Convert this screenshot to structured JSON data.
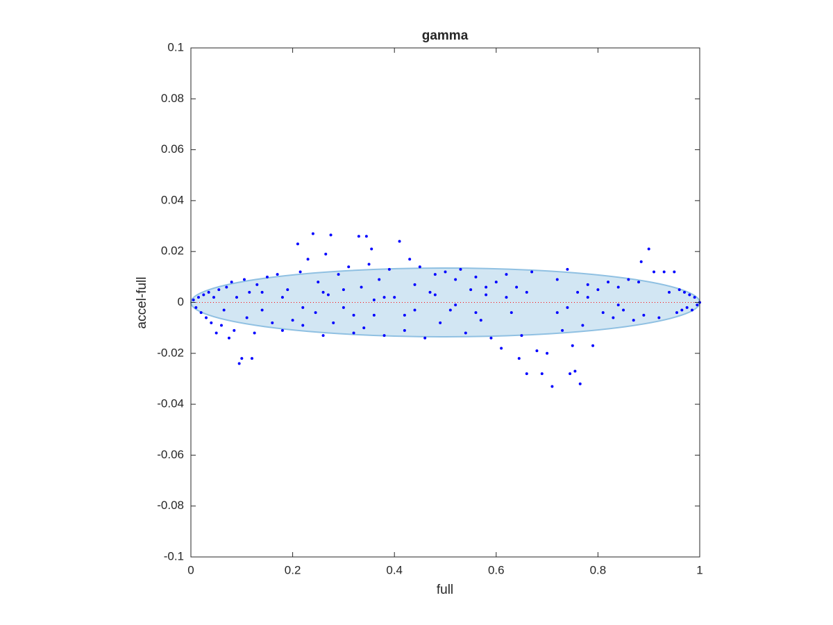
{
  "chart_data": {
    "type": "scatter",
    "title": "gamma",
    "x_label": "full",
    "y_label": "accel-full",
    "color": "#0000ff",
    "ellipse": {
      "center": [
        0.5,
        0
      ],
      "radii": [
        0.5,
        0.0135
      ],
      "color": "#d2e6f3",
      "edge_color": "#8fc0e2"
    },
    "reference_line": {
      "y": 0,
      "color": "#ff0000"
    },
    "xlim": [
      0,
      1
    ],
    "xticks": [
      0,
      0.2,
      0.4,
      0.6,
      0.8,
      1
    ],
    "ylim": [
      -0.1,
      0.1
    ],
    "yticks": [
      -0.1,
      -0.08,
      -0.06,
      -0.04,
      -0.02,
      0,
      0.02,
      0.04,
      0.06,
      0.08,
      0.1
    ],
    "grid": false,
    "x": [
      0.005,
      0.01,
      0.015,
      0.02,
      0.025,
      0.03,
      0.035,
      0.04,
      0.045,
      0.05,
      0.055,
      0.06,
      0.065,
      0.07,
      0.075,
      0.08,
      0.085,
      0.09,
      0.095,
      0.1,
      0.105,
      0.11,
      0.115,
      0.12,
      0.125,
      0.13,
      0.14,
      0.15,
      0.16,
      0.17,
      0.18,
      0.19,
      0.2,
      0.21,
      0.215,
      0.22,
      0.23,
      0.24,
      0.245,
      0.25,
      0.26,
      0.265,
      0.27,
      0.275,
      0.28,
      0.29,
      0.3,
      0.31,
      0.32,
      0.33,
      0.335,
      0.34,
      0.345,
      0.35,
      0.355,
      0.36,
      0.37,
      0.38,
      0.39,
      0.4,
      0.41,
      0.42,
      0.43,
      0.44,
      0.45,
      0.46,
      0.47,
      0.48,
      0.49,
      0.5,
      0.51,
      0.52,
      0.53,
      0.54,
      0.55,
      0.56,
      0.57,
      0.58,
      0.59,
      0.6,
      0.61,
      0.62,
      0.63,
      0.64,
      0.645,
      0.65,
      0.66,
      0.67,
      0.68,
      0.69,
      0.7,
      0.71,
      0.72,
      0.73,
      0.74,
      0.745,
      0.75,
      0.755,
      0.76,
      0.765,
      0.77,
      0.78,
      0.79,
      0.8,
      0.81,
      0.82,
      0.83,
      0.84,
      0.85,
      0.86,
      0.87,
      0.88,
      0.885,
      0.89,
      0.9,
      0.91,
      0.92,
      0.93,
      0.94,
      0.95,
      0.955,
      0.96,
      0.965,
      0.97,
      0.975,
      0.98,
      0.985,
      0.99,
      0.995,
      1.0,
      0.3,
      0.32,
      0.36,
      0.44,
      0.48,
      0.52,
      0.56,
      0.62,
      0.66,
      0.72,
      0.14,
      0.18,
      0.22,
      0.26,
      0.38,
      0.42,
      0.58,
      0.74,
      0.78,
      0.84
    ],
    "values": [
      0.001,
      -0.002,
      0.002,
      -0.004,
      0.003,
      -0.006,
      0.004,
      -0.008,
      0.002,
      -0.012,
      0.005,
      -0.009,
      -0.003,
      0.006,
      -0.014,
      0.008,
      -0.011,
      0.002,
      -0.024,
      -0.022,
      0.009,
      -0.006,
      0.004,
      -0.022,
      -0.012,
      0.007,
      -0.003,
      0.01,
      -0.008,
      0.011,
      -0.011,
      0.005,
      -0.007,
      0.023,
      0.012,
      -0.009,
      0.017,
      0.027,
      -0.004,
      0.008,
      -0.013,
      0.019,
      0.003,
      0.0265,
      -0.008,
      0.011,
      -0.002,
      0.014,
      -0.012,
      0.026,
      0.006,
      -0.01,
      0.026,
      0.015,
      0.021,
      -0.005,
      0.009,
      -0.013,
      0.013,
      0.002,
      0.024,
      -0.011,
      0.017,
      0.007,
      0.014,
      -0.014,
      0.004,
      0.011,
      -0.008,
      0.012,
      -0.003,
      0.009,
      0.013,
      -0.012,
      0.005,
      0.01,
      -0.007,
      0.003,
      -0.014,
      0.008,
      -0.018,
      0.011,
      -0.004,
      0.006,
      -0.022,
      -0.013,
      -0.028,
      0.012,
      -0.019,
      -0.028,
      -0.02,
      -0.033,
      0.009,
      -0.011,
      0.013,
      -0.028,
      -0.017,
      -0.027,
      0.004,
      -0.032,
      -0.009,
      0.007,
      -0.017,
      0.005,
      -0.004,
      0.008,
      -0.006,
      0.006,
      -0.003,
      0.009,
      -0.007,
      0.008,
      0.016,
      -0.005,
      0.021,
      0.012,
      -0.006,
      0.012,
      0.004,
      0.012,
      -0.004,
      0.005,
      -0.003,
      0.004,
      -0.002,
      0.003,
      -0.003,
      0.002,
      -0.001,
      0,
      0.005,
      -0.005,
      0.001,
      -0.003,
      0.003,
      -0.001,
      -0.004,
      0.002,
      0.004,
      -0.004,
      0.004,
      0.002,
      -0.002,
      0.004,
      0.002,
      -0.005,
      0.006,
      -0.002,
      0.002,
      -0.001
    ]
  }
}
